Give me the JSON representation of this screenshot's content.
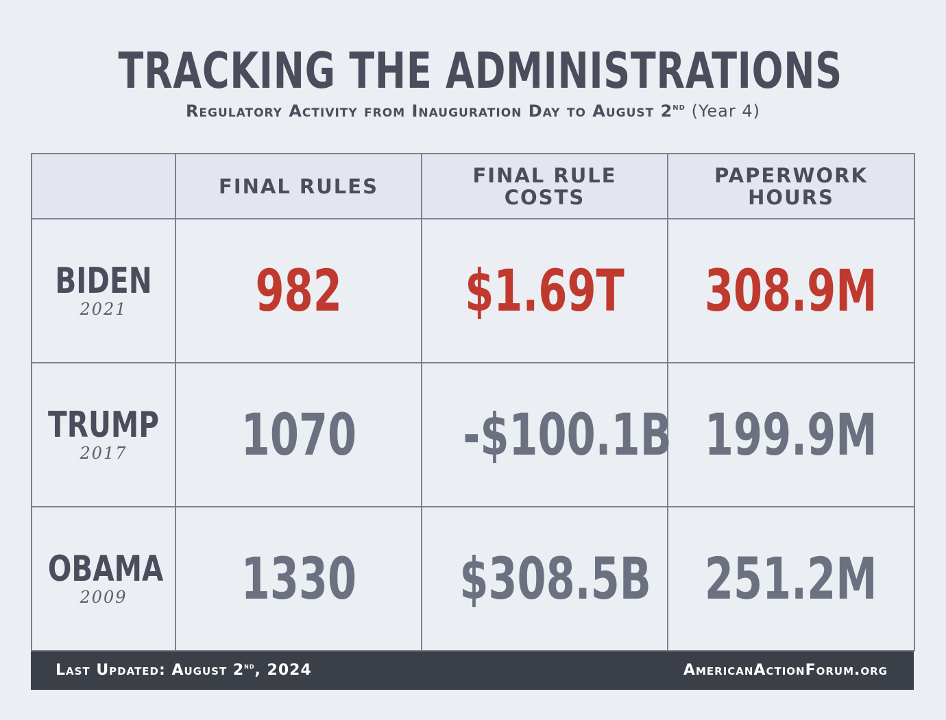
{
  "title": "TRACKING THE ADMINISTRATIONS",
  "subtitle": {
    "main": "Regulatory Activity from Inauguration Day to August 2",
    "sup": "nd",
    "tail": " (Year 4)"
  },
  "table": {
    "columns": [
      "FINAL RULES",
      "FINAL RULE COSTS",
      "PAPERWORK HOURS"
    ],
    "rows": [
      {
        "name": "BIDEN",
        "year": "2021",
        "values": [
          "982",
          "$1.69T",
          "308.9M"
        ],
        "highlight": true
      },
      {
        "name": "TRUMP",
        "year": "2017",
        "values": [
          "1070",
          "-$100.1B",
          "199.9M"
        ],
        "highlight": false
      },
      {
        "name": "OBAMA",
        "year": "2009",
        "values": [
          "1330",
          "$308.5B",
          "251.2M"
        ],
        "highlight": false
      }
    ]
  },
  "footer": {
    "updated_main": "Last Updated: August 2",
    "updated_sup": "nd",
    "updated_tail": ", 2024",
    "site": "AmericanActionForum.org"
  },
  "colors": {
    "highlight": "#c0392f",
    "value": "#6b7180",
    "text": "#4a4e5c",
    "footer_bg": "#3b3f47"
  }
}
